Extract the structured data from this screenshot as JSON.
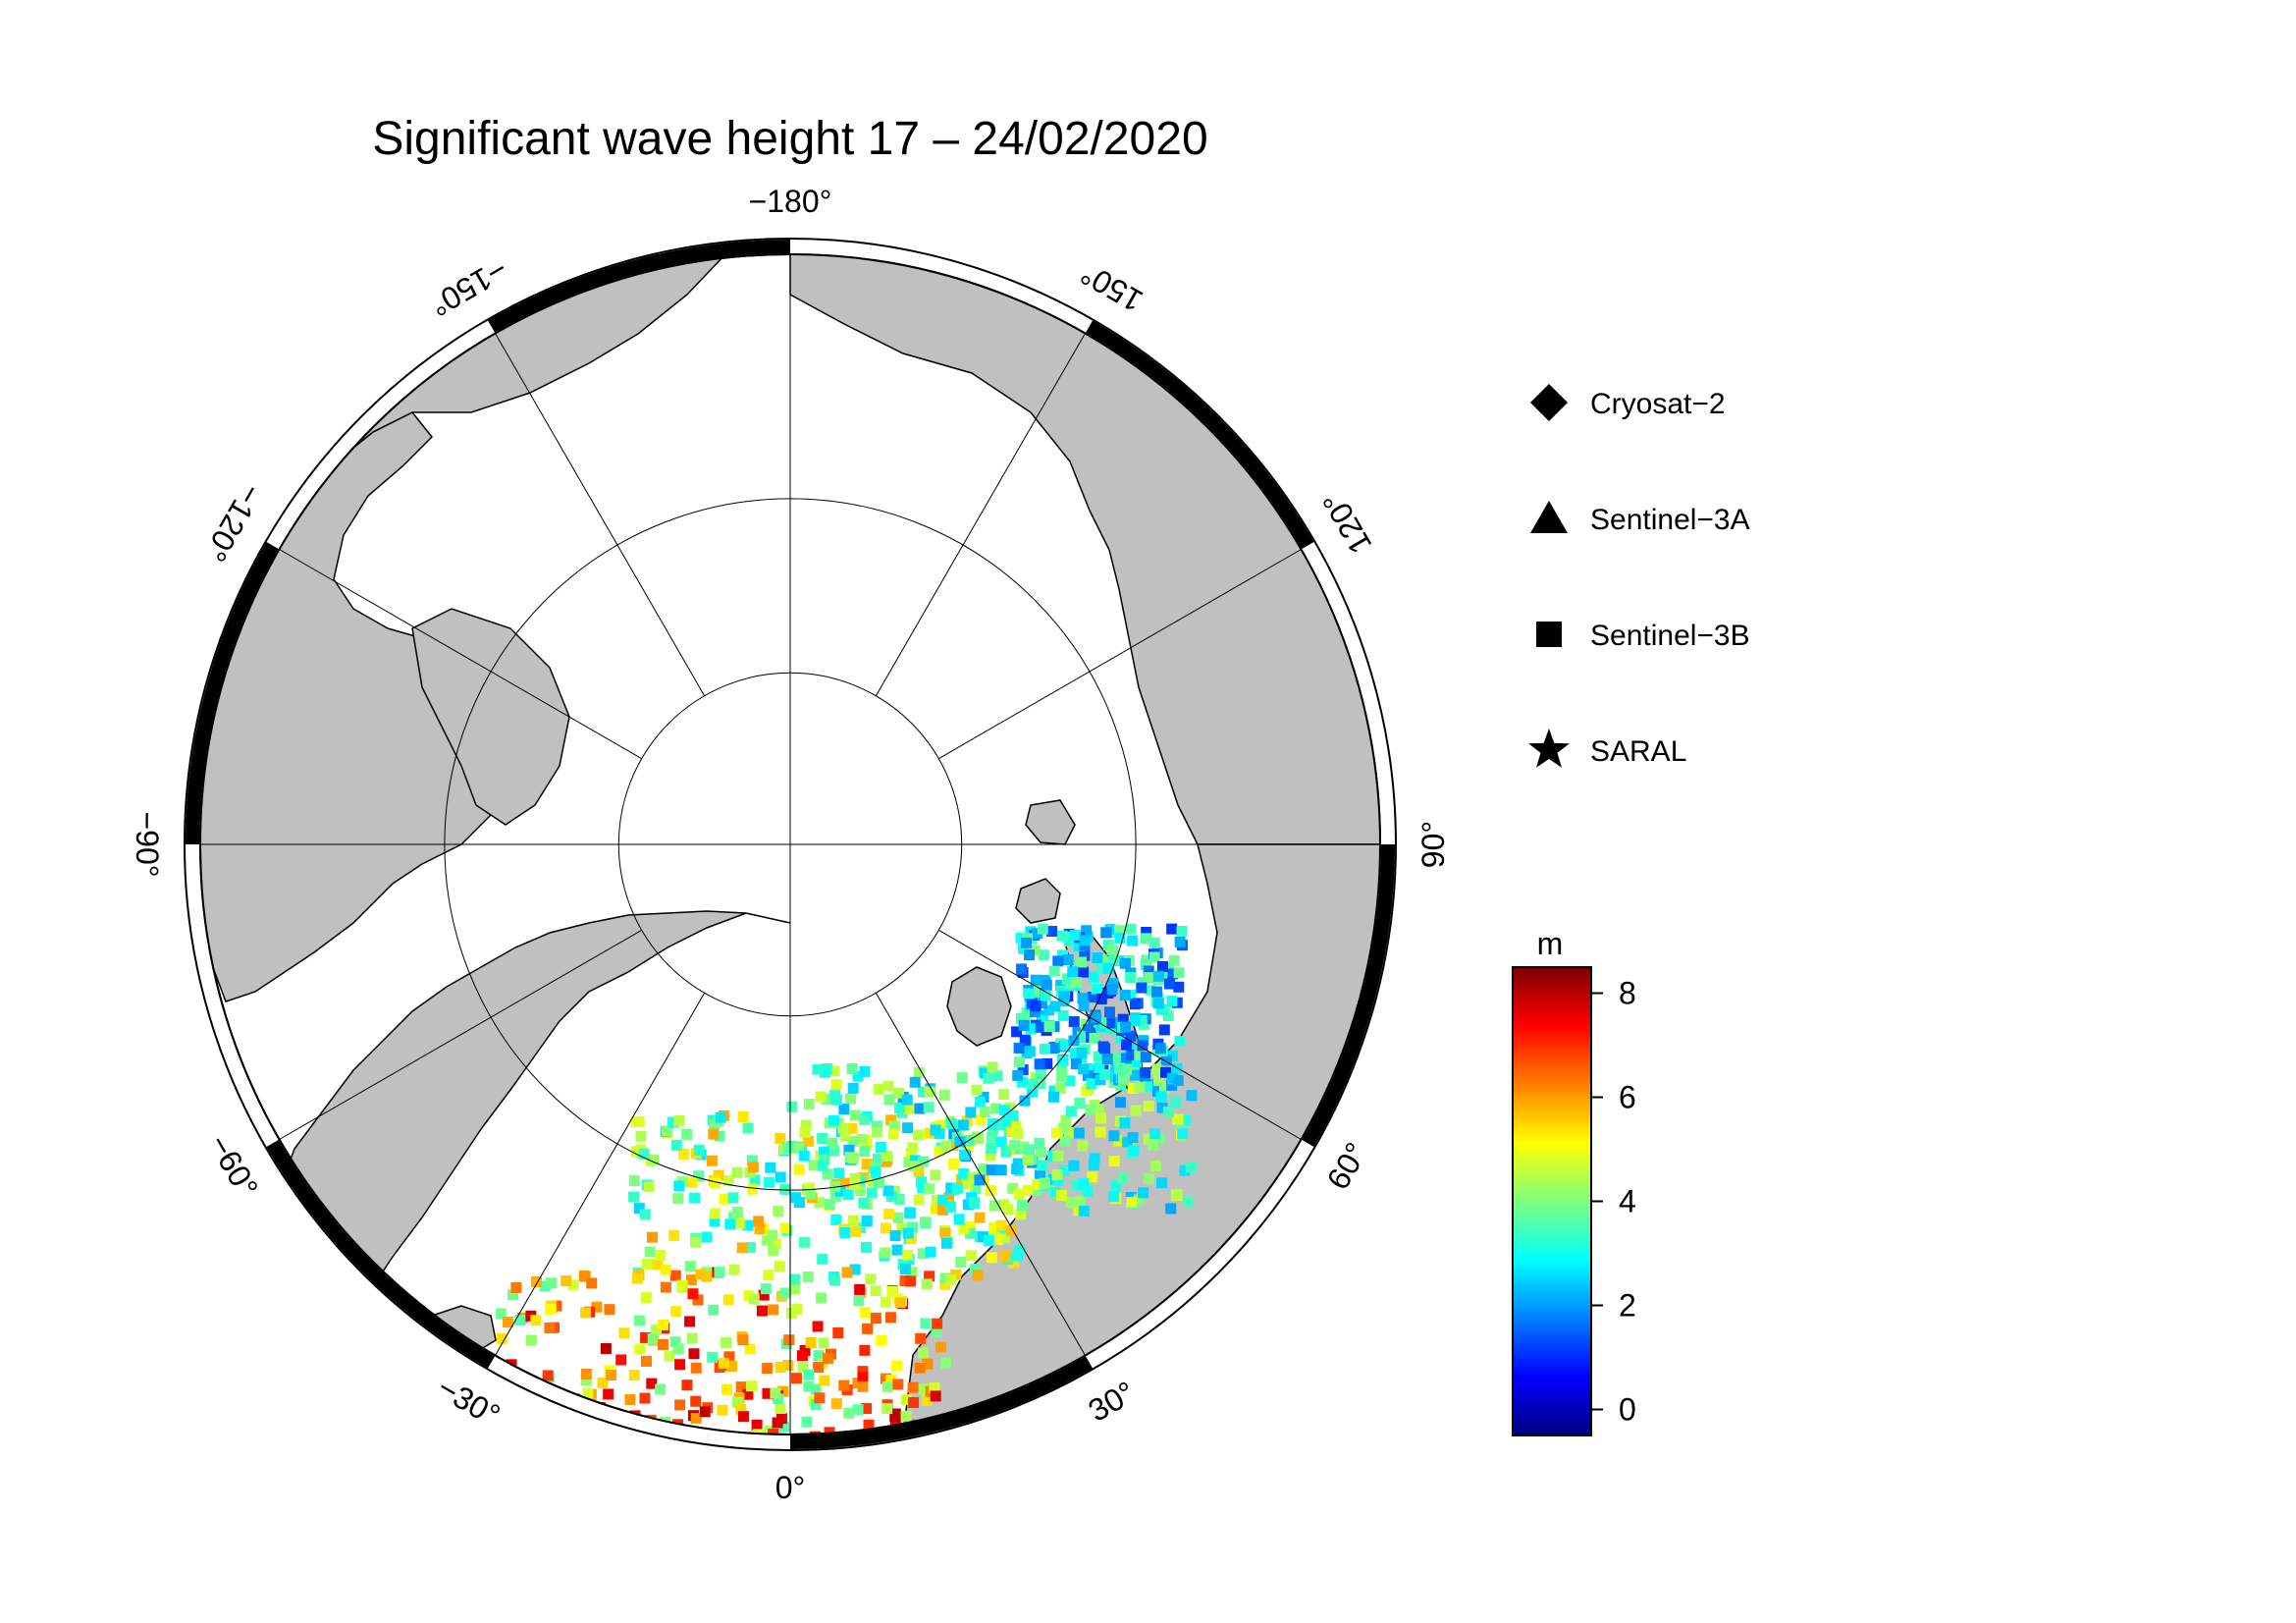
{
  "title": "Significant wave height 17 – 24/02/2020",
  "longitude_labels": [
    {
      "lon": 0,
      "text": "0°"
    },
    {
      "lon": 30,
      "text": "30°"
    },
    {
      "lon": 60,
      "text": "60°"
    },
    {
      "lon": 90,
      "text": "90°"
    },
    {
      "lon": 120,
      "text": "120°"
    },
    {
      "lon": 150,
      "text": "150°"
    },
    {
      "lon": 180,
      "text": "−180°"
    },
    {
      "lon": -150,
      "text": "−150°"
    },
    {
      "lon": -120,
      "text": "−120°"
    },
    {
      "lon": -90,
      "text": "−90°"
    },
    {
      "lon": -60,
      "text": "−60°"
    },
    {
      "lon": -30,
      "text": "−30°"
    }
  ],
  "legend": [
    {
      "marker": "diamond",
      "label": "Cryosat−2"
    },
    {
      "marker": "triangle",
      "label": "Sentinel−3A"
    },
    {
      "marker": "square",
      "label": "Sentinel−3B"
    },
    {
      "marker": "star",
      "label": "SARAL"
    }
  ],
  "colorbar": {
    "unit": "m",
    "min": -0.5,
    "max": 8.5,
    "ticks": [
      0,
      2,
      4,
      6,
      8
    ],
    "colors": [
      "#00007f",
      "#0000ff",
      "#007fff",
      "#00ffff",
      "#7fff7f",
      "#ffff00",
      "#ff7f00",
      "#ff0000",
      "#7f0000"
    ]
  },
  "map": {
    "projection": "north polar stereographic",
    "land_color": "#c0c0c0",
    "ocean_color": "#ffffff",
    "graticule_latitudes": [
      80,
      70
    ],
    "graticule_longitude_step": 30
  }
}
